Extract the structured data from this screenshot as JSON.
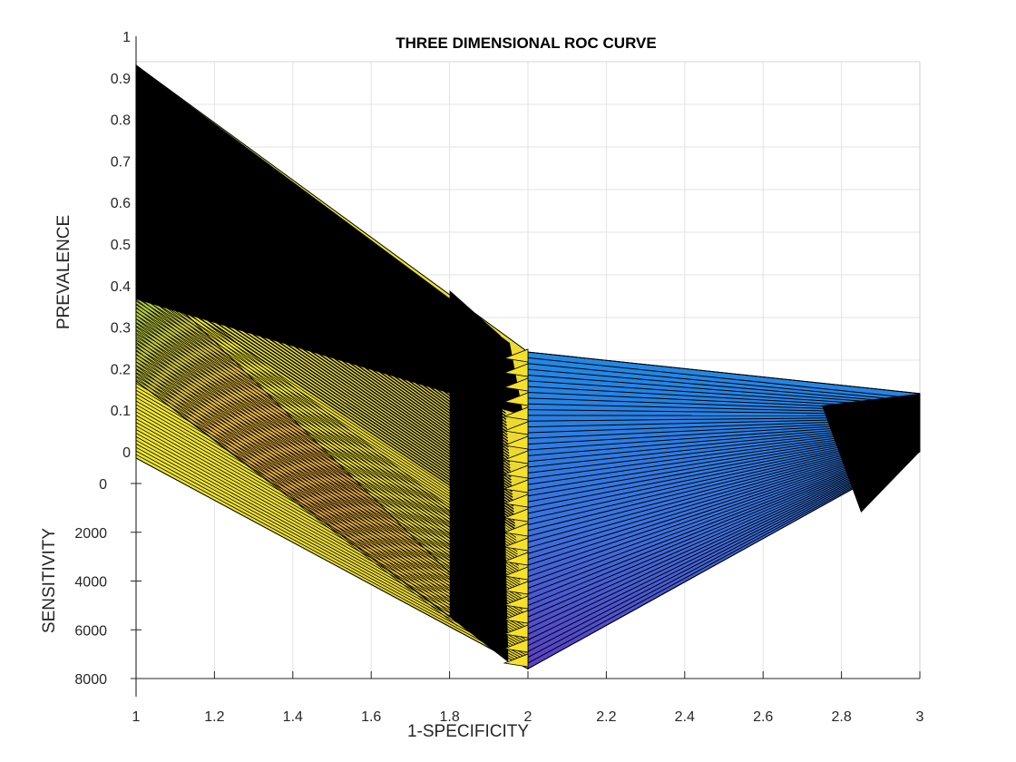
{
  "chart_data": {
    "type": "surface",
    "title": "THREE DIMENSIONAL ROC CURVE",
    "xlabel": "1-SPECIFICITY",
    "ylabel": "SENSITIVITY",
    "zlabel": "PREVALENCE",
    "xlim": [
      1,
      3
    ],
    "ylim": [
      0,
      8000
    ],
    "zlim": [
      0,
      1
    ],
    "x_ticks": [
      "1",
      "1.2",
      "1.4",
      "1.6",
      "1.8",
      "2",
      "2.2",
      "2.4",
      "2.6",
      "2.8",
      "3"
    ],
    "y_ticks": [
      "0",
      "2000",
      "4000",
      "6000",
      "8000"
    ],
    "z_ticks": [
      "0",
      "0.1",
      "0.2",
      "0.3",
      "0.4",
      "0.5",
      "0.6",
      "0.7",
      "0.8",
      "0.9",
      "1"
    ],
    "grid": true,
    "colormap": "parula",
    "edge_color": "#000000",
    "surface_vertices": {
      "x": [
        1,
        2,
        3
      ],
      "prevalence_at_y0": [
        0.93,
        0.24,
        0.14
      ],
      "sensitivity_at_base": [
        0,
        7600,
        0
      ]
    }
  }
}
